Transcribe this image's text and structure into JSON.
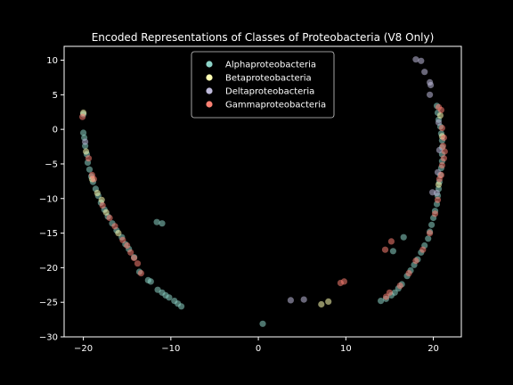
{
  "chart_data": {
    "type": "scatter",
    "title": "Encoded Representations of Classes of Proteobacteria (V8 Only)",
    "xlabel": "",
    "ylabel": "",
    "xlim": [
      -22.2,
      23.2
    ],
    "ylim": [
      -30,
      12
    ],
    "x_ticks": [
      -20,
      -10,
      0,
      10,
      20
    ],
    "y_ticks": [
      -30,
      -25,
      -20,
      -15,
      -10,
      -5,
      0,
      5,
      10
    ],
    "grid": false,
    "legend_position": "upper-center",
    "series": [
      {
        "name": "Alphaproteobacteria",
        "color": "#8dd3c7",
        "points": [
          [
            -20.0,
            2.2
          ],
          [
            -20.0,
            -0.5
          ],
          [
            -19.9,
            -1.2
          ],
          [
            -19.8,
            -2.4
          ],
          [
            -19.6,
            -3.6
          ],
          [
            -19.5,
            -4.8
          ],
          [
            -19.3,
            -5.8
          ],
          [
            -19.1,
            -6.8
          ],
          [
            -18.9,
            -7.6
          ],
          [
            -18.6,
            -8.6
          ],
          [
            -18.3,
            -9.6
          ],
          [
            -18.0,
            -10.6
          ],
          [
            -17.6,
            -11.6
          ],
          [
            -17.2,
            -12.6
          ],
          [
            -16.7,
            -13.6
          ],
          [
            -16.2,
            -14.6
          ],
          [
            -15.6,
            -15.6
          ],
          [
            -15.2,
            -16.6
          ],
          [
            -14.8,
            -17.3
          ],
          [
            -14.2,
            -18.5
          ],
          [
            -13.6,
            -20.6
          ],
          [
            -12.6,
            -21.8
          ],
          [
            -12.3,
            -22.0
          ],
          [
            -11.5,
            -23.2
          ],
          [
            -11.0,
            -23.6
          ],
          [
            -10.6,
            -24.0
          ],
          [
            -10.2,
            -24.3
          ],
          [
            -9.6,
            -24.8
          ],
          [
            -9.2,
            -25.2
          ],
          [
            -8.8,
            -25.6
          ],
          [
            -11.6,
            -13.4
          ],
          [
            -11.0,
            -13.6
          ],
          [
            0.5,
            -28.1
          ],
          [
            14.0,
            -24.8
          ],
          [
            14.6,
            -24.5
          ],
          [
            15.2,
            -24.0
          ],
          [
            15.6,
            -23.6
          ],
          [
            16.0,
            -23.0
          ],
          [
            16.4,
            -22.4
          ],
          [
            17.0,
            -21.2
          ],
          [
            17.4,
            -20.4
          ],
          [
            17.8,
            -19.6
          ],
          [
            18.2,
            -18.8
          ],
          [
            18.6,
            -17.8
          ],
          [
            19.0,
            -16.8
          ],
          [
            19.4,
            -15.8
          ],
          [
            19.6,
            -14.8
          ],
          [
            19.8,
            -13.8
          ],
          [
            20.0,
            -12.8
          ],
          [
            20.2,
            -11.8
          ],
          [
            20.4,
            -10.8
          ],
          [
            20.5,
            -9.6
          ],
          [
            20.6,
            -8.6
          ],
          [
            20.7,
            -7.6
          ],
          [
            20.8,
            -6.6
          ],
          [
            20.9,
            -5.6
          ],
          [
            21.0,
            -4.6
          ],
          [
            21.0,
            -3.6
          ],
          [
            21.0,
            -2.6
          ],
          [
            21.0,
            -1.6
          ],
          [
            20.9,
            -0.6
          ],
          [
            20.8,
            0.4
          ],
          [
            20.6,
            1.4
          ],
          [
            20.5,
            2.4
          ],
          [
            20.4,
            3.4
          ],
          [
            15.4,
            -17.6
          ],
          [
            16.6,
            -15.6
          ]
        ]
      },
      {
        "name": "Betaproteobacteria",
        "color": "#ffffb3",
        "points": [
          [
            -20.0,
            2.4
          ],
          [
            -19.7,
            -3.2
          ],
          [
            -19.0,
            -7.2
          ],
          [
            -18.4,
            -9.2
          ],
          [
            -17.9,
            -10.2
          ],
          [
            -17.4,
            -12.0
          ],
          [
            -16.0,
            -15.0
          ],
          [
            7.2,
            -25.3
          ],
          [
            8.0,
            -24.9
          ],
          [
            21.0,
            -1.0
          ],
          [
            20.8,
            2.0
          ],
          [
            20.6,
            -8.0
          ]
        ]
      },
      {
        "name": "Deltaproteobacteria",
        "color": "#bebada",
        "points": [
          [
            18.0,
            10.1
          ],
          [
            18.6,
            9.9
          ],
          [
            19.0,
            8.3
          ],
          [
            19.6,
            6.8
          ],
          [
            19.7,
            6.4
          ],
          [
            19.6,
            5.0
          ],
          [
            19.9,
            -9.1
          ],
          [
            20.4,
            -9.2
          ],
          [
            3.7,
            -24.7
          ],
          [
            5.2,
            -24.6
          ],
          [
            20.6,
            1.0
          ],
          [
            20.7,
            -3.0
          ],
          [
            20.5,
            -6.2
          ],
          [
            -19.8,
            -1.8
          ]
        ]
      },
      {
        "name": "Gammaproteobacteria",
        "color": "#fb8072",
        "points": [
          [
            -20.1,
            1.8
          ],
          [
            -19.4,
            -4.2
          ],
          [
            -19.0,
            -6.6
          ],
          [
            -18.8,
            -7.2
          ],
          [
            -17.8,
            -11.0
          ],
          [
            -17.0,
            -12.8
          ],
          [
            -16.4,
            -14.0
          ],
          [
            -15.5,
            -16.0
          ],
          [
            -15.0,
            -16.8
          ],
          [
            -14.6,
            -17.8
          ],
          [
            -14.2,
            -18.6
          ],
          [
            -13.8,
            -19.4
          ],
          [
            -13.4,
            -20.8
          ],
          [
            9.4,
            -22.2
          ],
          [
            9.8,
            -22.0
          ],
          [
            14.5,
            -17.4
          ],
          [
            15.2,
            -16.2
          ],
          [
            14.6,
            -24.2
          ],
          [
            15.0,
            -23.6
          ],
          [
            20.6,
            3.2
          ],
          [
            20.9,
            2.8
          ],
          [
            21.0,
            0.2
          ],
          [
            21.2,
            -1.2
          ],
          [
            21.1,
            -2.4
          ],
          [
            21.3,
            -3.2
          ],
          [
            21.2,
            -4.2
          ],
          [
            21.0,
            -5.2
          ],
          [
            20.9,
            -6.6
          ],
          [
            20.7,
            -7.2
          ],
          [
            20.5,
            -10.2
          ],
          [
            20.2,
            -12.2
          ],
          [
            19.6,
            -15.0
          ],
          [
            18.8,
            -17.4
          ],
          [
            18.0,
            -19.0
          ],
          [
            17.2,
            -20.8
          ],
          [
            16.2,
            -22.6
          ]
        ]
      }
    ]
  }
}
